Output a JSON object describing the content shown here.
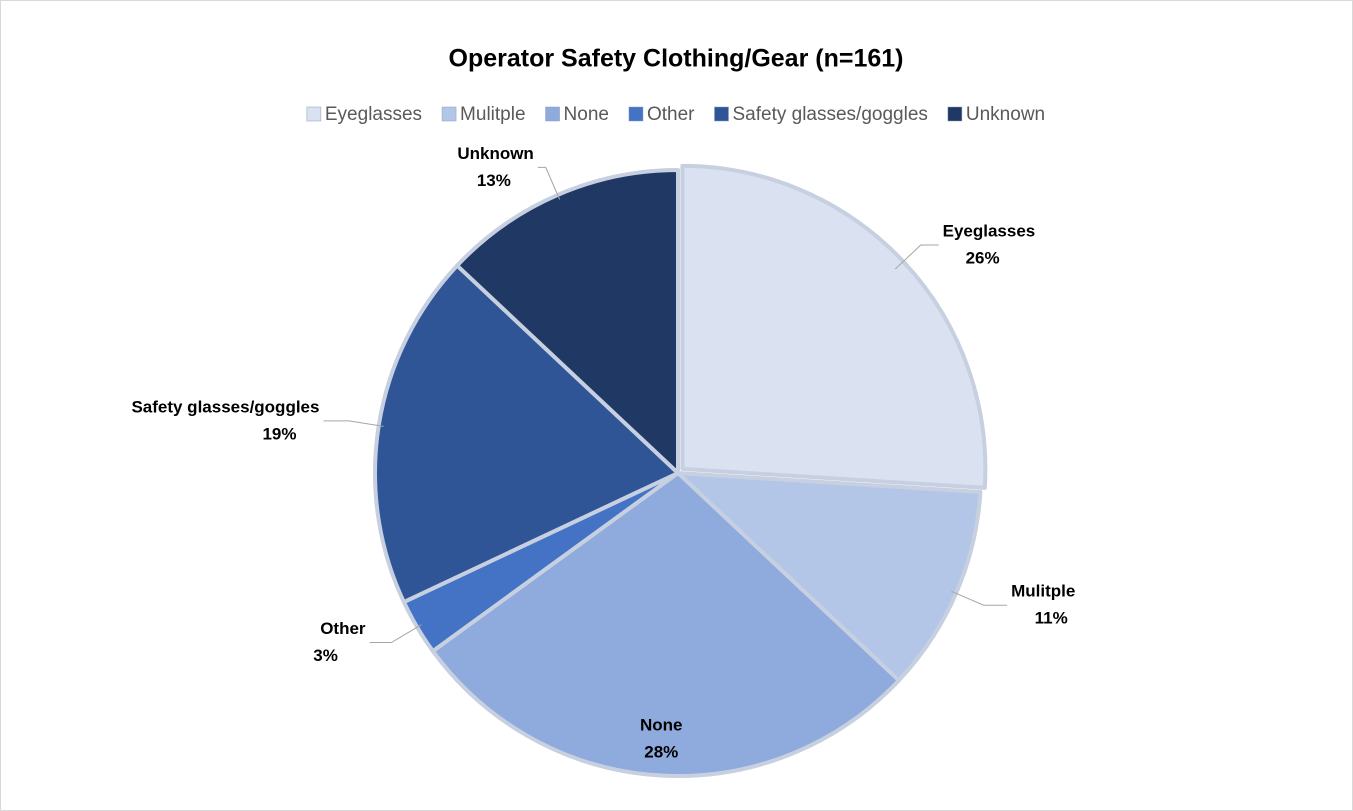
{
  "chart_data": {
    "type": "pie",
    "title": "Operator Safety Clothing/Gear (n=161)",
    "categories": [
      "Eyeglasses",
      "Mulitple",
      "None",
      "Other",
      "Safety glasses/goggles",
      "Unknown"
    ],
    "values": [
      26,
      11,
      28,
      3,
      19,
      13
    ],
    "value_labels": [
      "26%",
      "11%",
      "28%",
      "3%",
      "19%",
      "13%"
    ],
    "colors": [
      "#dae1f0",
      "#b4c6e7",
      "#8faadc",
      "#4472c4",
      "#2f5597",
      "#203864"
    ],
    "legend": "top"
  }
}
